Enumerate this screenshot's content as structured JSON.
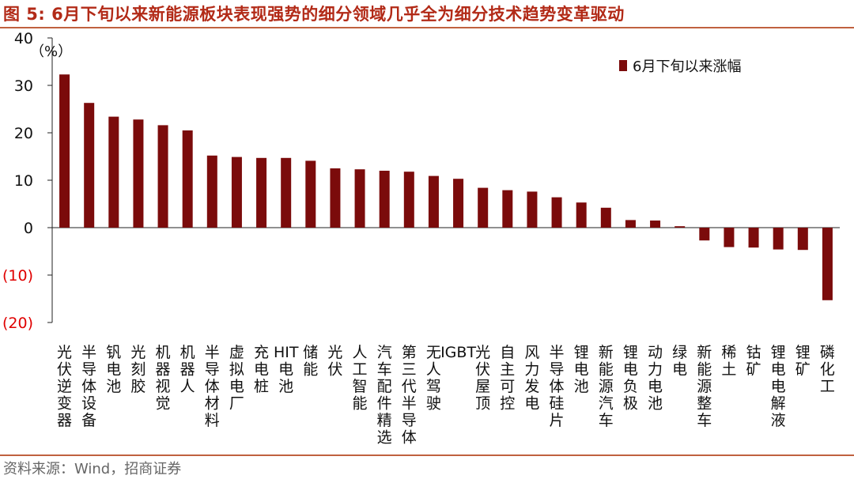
{
  "figure": {
    "title": "图 5:   6月下旬以来新能源板块表现强势的细分领域几乎全为细分技术趋势变革驱动",
    "source": "资料来源：Wind，招商证券"
  },
  "colors": {
    "bar": "#7b0b0b",
    "title": "#b22a17",
    "rule": "#c0613f",
    "negative_tick": "#e00000",
    "axis": "#222222"
  },
  "chart_data": {
    "type": "bar",
    "ylabel": "（%）",
    "ylim": [
      -20,
      40
    ],
    "yticks": [
      40,
      30,
      20,
      10,
      0,
      -10,
      -20
    ],
    "ytick_labels": [
      "40",
      "30",
      "20",
      "10",
      "0",
      "(10)",
      "(20)"
    ],
    "grid": false,
    "legend_position": "top-right",
    "categories": [
      "光伏逆变器",
      "半导体设备",
      "钒电池",
      "光刻胶",
      "机器视觉",
      "机器人",
      "半导体材料",
      "虚拟电厂",
      "充电桩",
      "HIT电池",
      "储能",
      "光伏",
      "人工智能",
      "汽车配件精选",
      "第三代半导体",
      "无人驾驶",
      "IGBT",
      "光伏屋顶",
      "自主可控",
      "风力发电",
      "半导体硅片",
      "锂电池",
      "新能源汽车",
      "锂电负极",
      "动力电池",
      "绿电",
      "新能源整车",
      "稀土",
      "钴矿",
      "锂电电解液",
      "锂矿",
      "磷化工"
    ],
    "series": [
      {
        "name": "6月下旬以来涨幅",
        "values": [
          32.3,
          26.3,
          23.4,
          22.8,
          21.6,
          20.5,
          15.2,
          14.9,
          14.7,
          14.7,
          14.1,
          12.5,
          12.3,
          12.0,
          11.8,
          10.9,
          10.3,
          8.4,
          7.9,
          7.6,
          6.4,
          5.3,
          4.2,
          1.6,
          1.5,
          0.3,
          -2.7,
          -4.1,
          -4.2,
          -4.6,
          -4.7,
          -15.3
        ]
      }
    ]
  }
}
